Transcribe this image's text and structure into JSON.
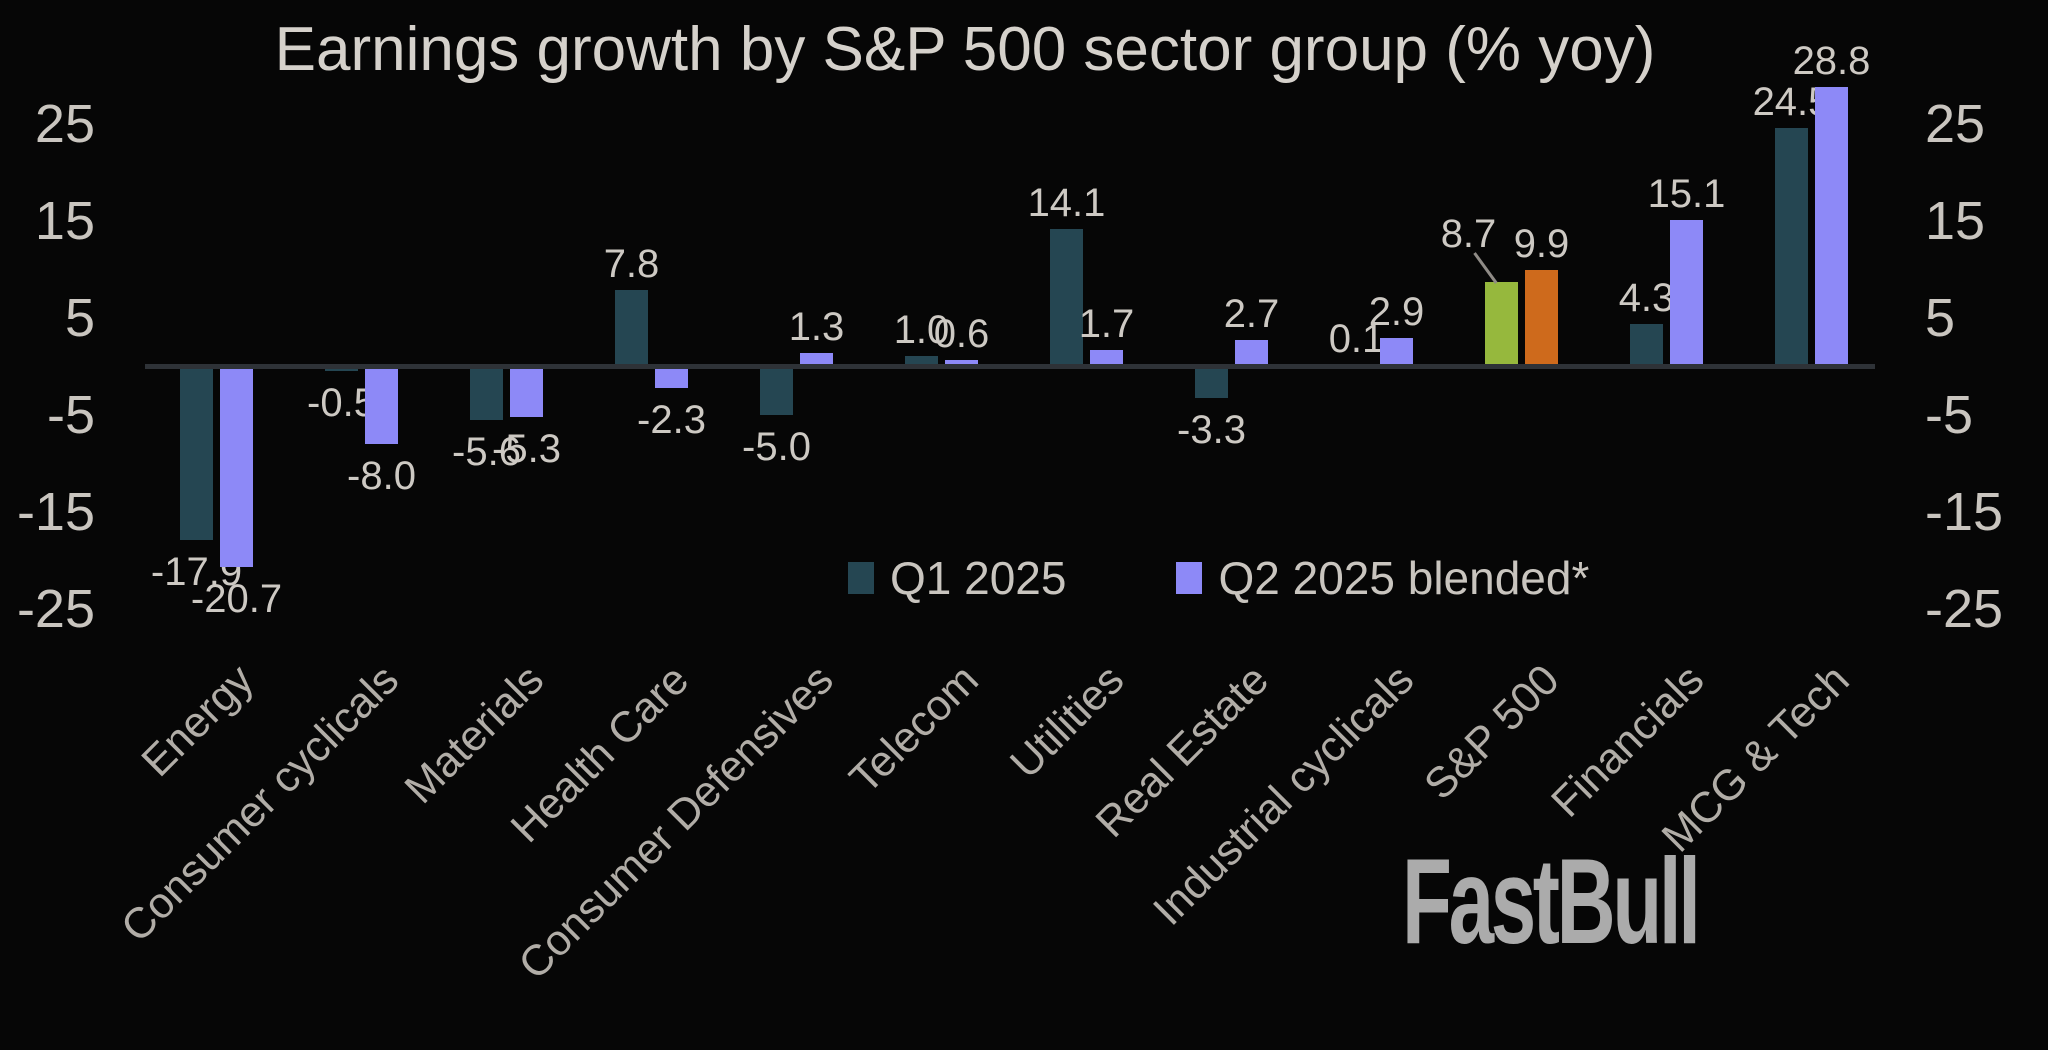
{
  "watermark": "FastBull",
  "colors": {
    "background": "#060606",
    "title_text": "#D5D1CB",
    "tick_text": "#C9C5BF",
    "value_label_text": "#CDC9C3",
    "category_text": "#B1ADA7",
    "axis_line": "#2E3237",
    "series_q1": "#254652",
    "series_q2": "#8D89F7",
    "highlight_q1": "#96B83D",
    "highlight_q2": "#CE6A1C",
    "leader_line": "#8F8B86",
    "watermark_text": "#ABABAB"
  },
  "chart_data": {
    "type": "bar",
    "title": "Earnings growth by S&P 500 sector group (% yoy)",
    "categories": [
      "Energy",
      "Consumer cyclicals",
      "Materials",
      "Health Care",
      "Consumer Defensives",
      "Telecom",
      "Utilities",
      "Real Estate",
      "Industrial cyclicals",
      "S&P 500",
      "Financials",
      "MCG & Tech"
    ],
    "series": [
      {
        "name": "Q1 2025",
        "values": [
          -17.9,
          -0.5,
          -5.6,
          7.8,
          -5.0,
          1.0,
          14.1,
          -3.3,
          0.1,
          8.7,
          4.3,
          24.5
        ]
      },
      {
        "name": "Q2 2025 blended*",
        "values": [
          -20.7,
          -8.0,
          -5.3,
          -2.3,
          1.3,
          0.6,
          1.7,
          2.7,
          2.9,
          9.9,
          15.1,
          28.8
        ]
      }
    ],
    "highlight_category": "S&P 500",
    "y_ticks": [
      25,
      15,
      5,
      -5,
      -15,
      -25
    ],
    "ylim": [
      -29,
      30
    ],
    "xlabel": "",
    "ylabel": "",
    "grid": false,
    "y_axis_sides": "both",
    "legend_position": "lower-center",
    "bar_value_labels": true,
    "callout": {
      "category": "S&P 500",
      "series_index": 0,
      "label_dx": -33,
      "label_dy": -22,
      "leader": {
        "x": 1473,
        "y": 253,
        "length": 37,
        "angle_deg": -36
      }
    }
  }
}
